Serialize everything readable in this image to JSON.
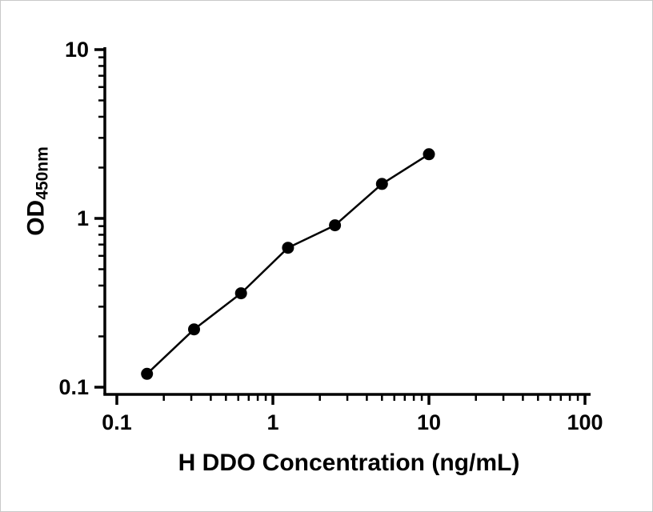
{
  "chart_data": {
    "type": "scatter",
    "title": "",
    "xlabel": "H DDO Concentration (ng/mL)",
    "ylabel": "OD450nm",
    "ylabel_main": "OD",
    "ylabel_sub": "450nm",
    "x_scale": "log",
    "y_scale": "log",
    "xlim": [
      0.1,
      100
    ],
    "ylim": [
      0.1,
      10
    ],
    "x_ticks": [
      0.1,
      1,
      10,
      100
    ],
    "y_ticks": [
      0.1,
      1,
      10
    ],
    "grid": false,
    "legend": "none",
    "series": [
      {
        "x": [
          0.156,
          0.3125,
          0.625,
          1.25,
          2.5,
          5,
          10
        ],
        "y": [
          0.12,
          0.22,
          0.36,
          0.67,
          0.91,
          1.6,
          2.4
        ],
        "marker": "circle",
        "marker_color": "#000000",
        "line_color": "#000000"
      }
    ]
  },
  "colors": {
    "axis": "#000000",
    "background": "#ffffff"
  }
}
